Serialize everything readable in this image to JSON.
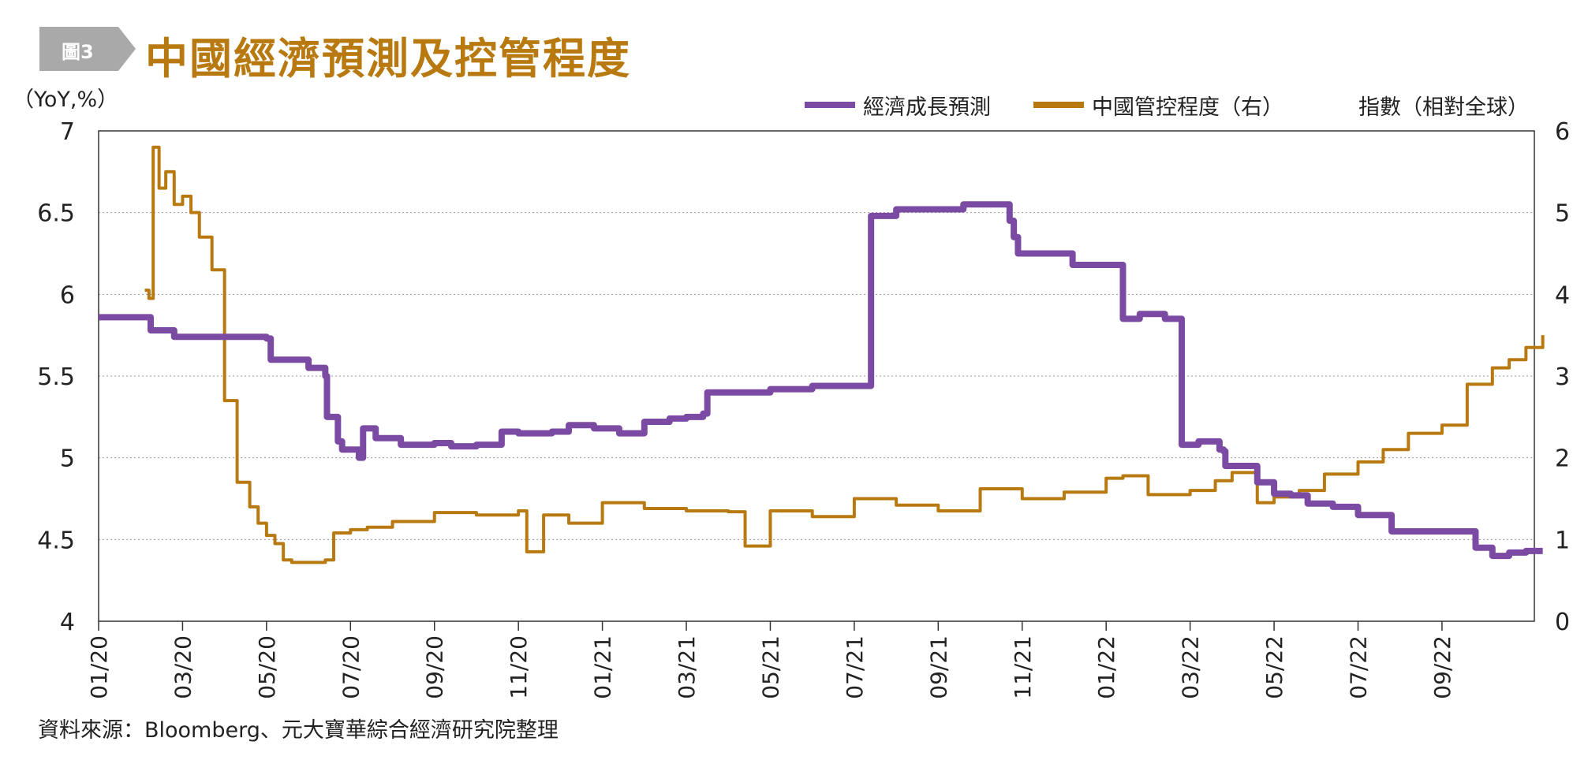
{
  "figure": {
    "badge": "圖3",
    "title": "中國經濟預測及控管程度",
    "source": "資料來源：Bloomberg、元大寶華綜合經濟研究院整理",
    "badge_color": "#a9a9a9",
    "title_color": "#b87a10"
  },
  "chart_data": {
    "type": "line",
    "left_axis": {
      "label": "（YoY,%）",
      "ylim": [
        4,
        7
      ],
      "ticks": [
        "4",
        "4.5",
        "5",
        "5.5",
        "6",
        "6.5",
        "7"
      ]
    },
    "right_axis": {
      "label": "指數（相對全球）",
      "ylim": [
        0,
        6
      ],
      "ticks": [
        "0",
        "1",
        "2",
        "3",
        "4",
        "5",
        "6"
      ]
    },
    "x_ticks": [
      "01/20",
      "03/20",
      "05/20",
      "07/20",
      "09/20",
      "11/20",
      "01/21",
      "03/21",
      "05/21",
      "07/21",
      "09/21",
      "11/21",
      "01/22",
      "03/22",
      "05/22",
      "07/22",
      "09/22"
    ],
    "grid": "horizontal dotted",
    "legend_placement": "top-right",
    "series": [
      {
        "name": "經濟成長預測",
        "axis": "left",
        "color": "#7b4ba3",
        "x": [
          0,
          0.6,
          0.62,
          0.9,
          2.0,
          2.05,
          2.5,
          2.7,
          2.72,
          2.85,
          2.9,
          3.1,
          3.15,
          3.3,
          3.35,
          3.6,
          4.0,
          4.2,
          4.5,
          4.8,
          5.0,
          5.4,
          5.6,
          5.9,
          6.2,
          6.5,
          6.8,
          7.0,
          7.2,
          7.25,
          7.6,
          8.0,
          8.1,
          8.5,
          9.2,
          9.5,
          9.6,
          9.7,
          10.0,
          10.3,
          10.5,
          10.8,
          10.85,
          10.9,
          10.95,
          11.6,
          11.8,
          12.0,
          12.2,
          12.4,
          12.7,
          12.9,
          13.1,
          13.35,
          13.4,
          13.42,
          13.8,
          14.0,
          14.2,
          14.4,
          14.7,
          15.0,
          15.4,
          15.8,
          16.0,
          16.4,
          16.6,
          16.8,
          16.85,
          17.0,
          17.2
        ],
        "y": [
          5.86,
          5.86,
          5.78,
          5.74,
          5.73,
          5.6,
          5.55,
          5.5,
          5.25,
          5.1,
          5.05,
          5.0,
          5.18,
          5.12,
          5.12,
          5.08,
          5.09,
          5.07,
          5.08,
          5.16,
          5.15,
          5.16,
          5.2,
          5.18,
          5.15,
          5.22,
          5.24,
          5.25,
          5.27,
          5.4,
          5.4,
          5.42,
          5.42,
          5.44,
          6.48,
          6.52,
          6.52,
          6.52,
          6.52,
          6.55,
          6.55,
          6.55,
          6.45,
          6.35,
          6.25,
          6.18,
          6.18,
          6.18,
          5.85,
          5.88,
          5.85,
          5.08,
          5.1,
          5.05,
          5.04,
          4.95,
          4.85,
          4.78,
          4.77,
          4.72,
          4.7,
          4.65,
          4.55,
          4.55,
          4.55,
          4.45,
          4.4,
          4.42,
          4.42,
          4.43,
          4.43
        ],
        "x_step_corrected": true
      },
      {
        "name": "中國管控程度（右）",
        "axis": "right",
        "color": "#b87a10",
        "x": [
          0.55,
          0.6,
          0.65,
          0.72,
          0.8,
          0.9,
          1.0,
          1.1,
          1.2,
          1.35,
          1.5,
          1.65,
          1.8,
          1.9,
          2.0,
          2.1,
          2.2,
          2.3,
          2.45,
          2.6,
          2.7,
          2.8,
          3.0,
          3.2,
          3.5,
          4.0,
          4.5,
          5.0,
          5.1,
          5.3,
          5.6,
          6.0,
          6.5,
          7.0,
          7.5,
          7.7,
          8.0,
          8.5,
          9.0,
          9.5,
          10.0,
          10.5,
          11.0,
          11.5,
          12.0,
          12.2,
          12.5,
          12.7,
          13.0,
          13.3,
          13.5,
          13.8,
          14.0,
          14.3,
          14.6,
          15.0,
          15.3,
          15.6,
          16.0,
          16.3,
          16.6,
          16.8,
          17.0,
          17.2
        ],
        "y": [
          4.05,
          3.95,
          5.8,
          5.3,
          5.5,
          5.1,
          5.2,
          5.0,
          4.7,
          4.3,
          2.7,
          1.7,
          1.4,
          1.2,
          1.05,
          0.95,
          0.75,
          0.72,
          0.72,
          0.72,
          0.75,
          1.08,
          1.12,
          1.15,
          1.22,
          1.33,
          1.3,
          1.35,
          0.85,
          1.3,
          1.2,
          1.45,
          1.38,
          1.35,
          1.34,
          0.92,
          1.35,
          1.28,
          1.5,
          1.42,
          1.35,
          1.62,
          1.5,
          1.58,
          1.75,
          1.78,
          1.55,
          1.55,
          1.6,
          1.72,
          1.82,
          1.45,
          1.52,
          1.6,
          1.8,
          1.95,
          2.1,
          2.3,
          2.4,
          2.9,
          3.1,
          3.2,
          3.35,
          3.5
        ],
        "x_step_corrected": true
      }
    ]
  },
  "legend": {
    "econ": "經濟成長預測",
    "china": "中國管控程度（右）",
    "unit_right": "指數（相對全球）",
    "unit_left": "（YoY,%）"
  }
}
